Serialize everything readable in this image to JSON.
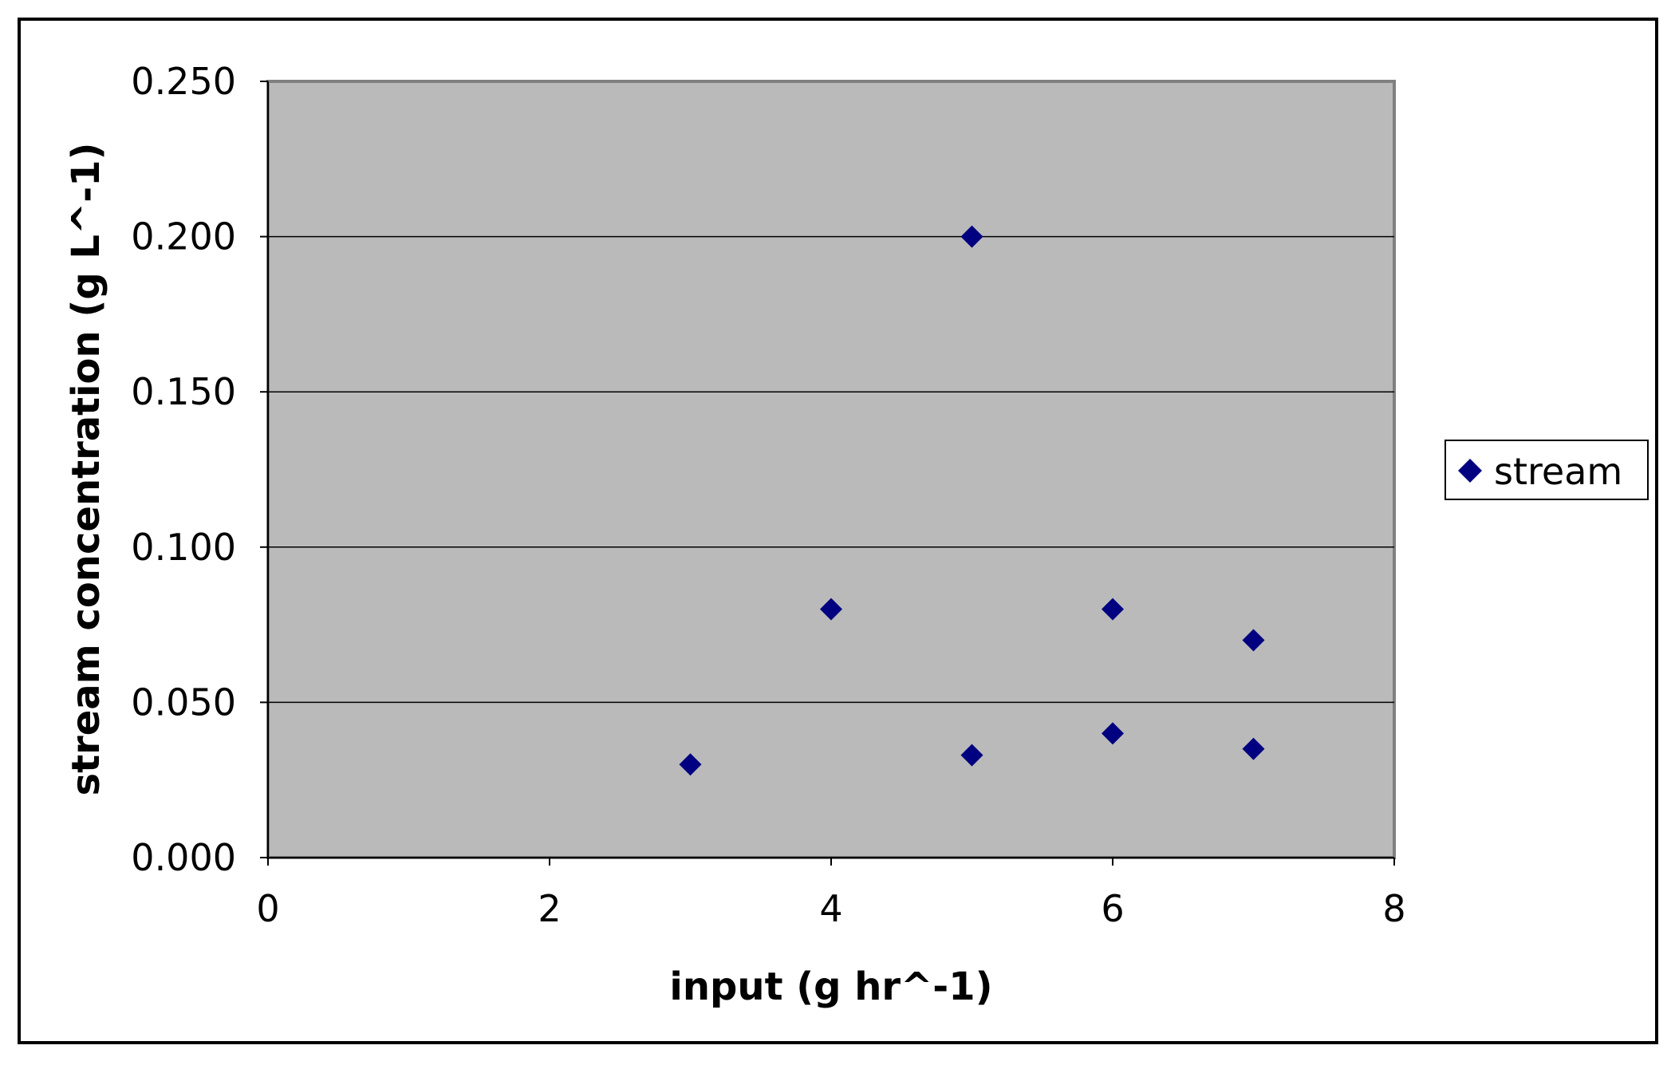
{
  "chart_data": {
    "type": "scatter",
    "title": "",
    "xlabel": "input (g hr^-1)",
    "ylabel": "stream concentration (g L^-1)",
    "xlim": [
      0,
      8
    ],
    "ylim": [
      0,
      0.25
    ],
    "x_ticks": [
      "0",
      "2",
      "4",
      "6",
      "8"
    ],
    "y_ticks": [
      "0.000",
      "0.050",
      "0.100",
      "0.150",
      "0.200",
      "0.250"
    ],
    "grid": "horizontal",
    "legend_position": "right",
    "plot_background": "#bababa",
    "series": [
      {
        "name": "stream",
        "color": "#000080",
        "marker": "diamond",
        "points": [
          {
            "x": 3,
            "y": 0.03
          },
          {
            "x": 4,
            "y": 0.08
          },
          {
            "x": 5,
            "y": 0.2
          },
          {
            "x": 5,
            "y": 0.033
          },
          {
            "x": 6,
            "y": 0.08
          },
          {
            "x": 6,
            "y": 0.04
          },
          {
            "x": 7,
            "y": 0.07
          },
          {
            "x": 7,
            "y": 0.035
          }
        ]
      }
    ]
  }
}
